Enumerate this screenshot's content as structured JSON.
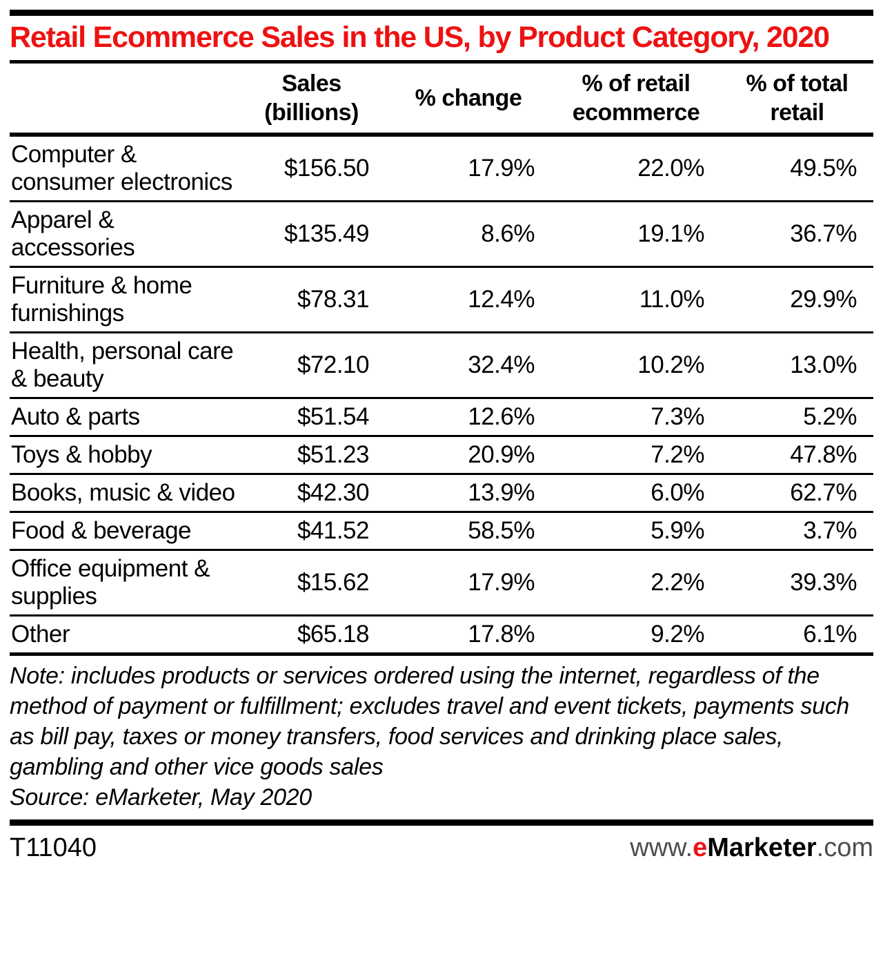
{
  "title": "Retail Ecommerce Sales in the US, by Product Category, 2020",
  "chart_data": {
    "type": "table",
    "title": "Retail Ecommerce Sales in the US, by Product Category, 2020",
    "columns": [
      "",
      "Sales (billions)",
      "% change",
      "% of retail ecommerce",
      "% of total retail"
    ],
    "rows": [
      [
        "Computer & consumer electronics",
        "$156.50",
        "17.9%",
        "22.0%",
        "49.5%"
      ],
      [
        "Apparel & accessories",
        "$135.49",
        "8.6%",
        "19.1%",
        "36.7%"
      ],
      [
        "Furniture & home furnishings",
        "$78.31",
        "12.4%",
        "11.0%",
        "29.9%"
      ],
      [
        "Health, personal care & beauty",
        "$72.10",
        "32.4%",
        "10.2%",
        "13.0%"
      ],
      [
        "Auto & parts",
        "$51.54",
        "12.6%",
        "7.3%",
        "5.2%"
      ],
      [
        "Toys & hobby",
        "$51.23",
        "20.9%",
        "7.2%",
        "47.8%"
      ],
      [
        "Books, music & video",
        "$42.30",
        "13.9%",
        "6.0%",
        "62.7%"
      ],
      [
        "Food & beverage",
        "$41.52",
        "58.5%",
        "5.9%",
        "3.7%"
      ],
      [
        "Office equipment & supplies",
        "$15.62",
        "17.9%",
        "2.2%",
        "39.3%"
      ],
      [
        "Other",
        "$65.18",
        "17.8%",
        "9.2%",
        "6.1%"
      ]
    ]
  },
  "note": "Note: includes products or services ordered using the internet, regardless of the method of payment or fulfillment; excludes travel and event tickets, payments such as bill pay, taxes or money transfers, food services and drinking place sales, gambling and other vice goods sales",
  "source": "Source: eMarketer, May 2020",
  "footer": {
    "chart_id": "T11040",
    "website": {
      "www": "www.",
      "e": "e",
      "marketer": "Marketer",
      "com": ".com"
    }
  },
  "colors": {
    "title_red": "#ee1111",
    "text_black": "#000000",
    "footer_gray": "#4d4d4d"
  }
}
